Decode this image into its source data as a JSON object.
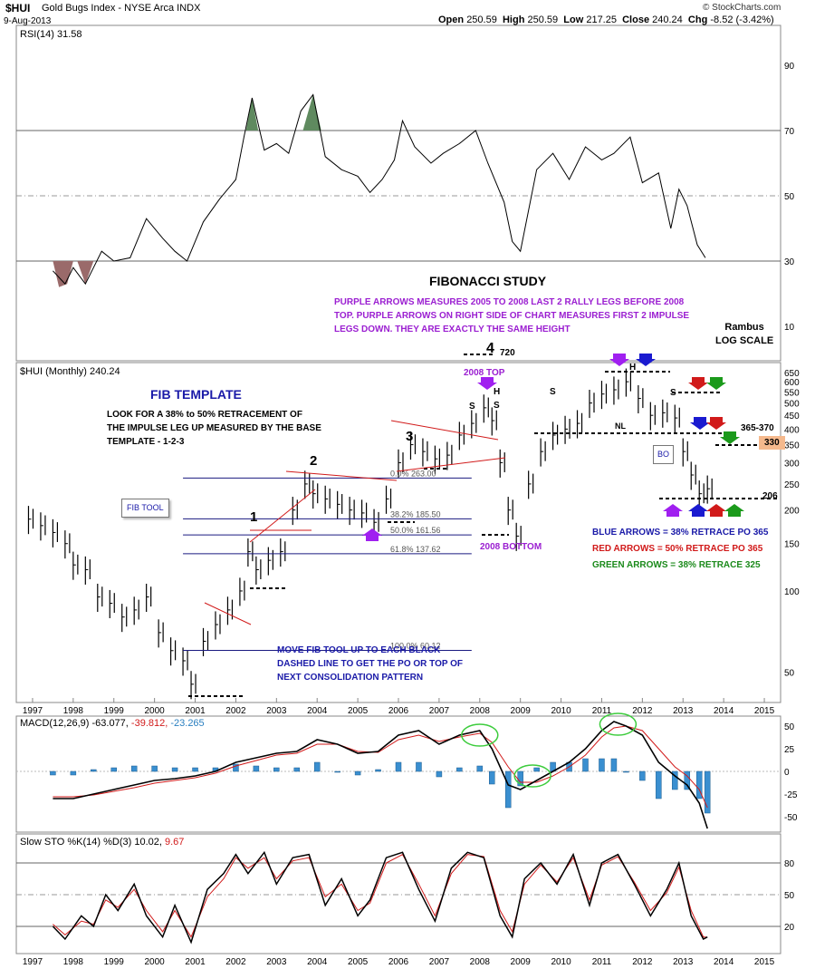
{
  "header": {
    "symbol": "$HUI",
    "name": "Gold Bugs Index - NYSE Arca INDX",
    "date": "9-Aug-2013",
    "open_label": "Open",
    "open": "250.59",
    "high_label": "High",
    "high": "250.59",
    "low_label": "Low",
    "low": "217.25",
    "close_label": "Close",
    "close": "240.24",
    "chg_label": "Chg",
    "chg": "-8.52 (-3.42%)",
    "credit": "© StockCharts.com"
  },
  "annotations": {
    "title": "FIBONACCI STUDY",
    "purple_note": "PURPLE ARROWS MEASURES 2005 TO 2008 LAST 2 RALLY LEGS BEFORE 2008\nTOP. PURPLE ARROWS ON RIGHT SIDE OF CHART MEASURES FIRST 2 IMPULSE\nLEGS DOWN. THEY ARE EXACTLY THE SAME HEIGHT",
    "rambus": "Rambus\nLOG SCALE",
    "fib_template_title": "FIB TEMPLATE",
    "fib_template_text": "LOOK FOR A 38% to 50% RETRACEMENT OF\nTHE IMPULSE LEG UP MEASURED BY THE BASE\nTEMPLATE - 1-2-3",
    "fib_tool": "FIB TOOL",
    "move_note": "MOVE FIB TOOL UP TO EACH BLACK\nDASHED LINE TO GET THE PO OR TOP OF\nNEXT CONSOLIDATION PATTERN",
    "blue_arrows": "BLUE ARROWS = 38% RETRACE PO 365",
    "red_arrows": "RED ARROWS = 50% RETRACE PO 365",
    "green_arrows": "GREEN ARROWS = 38% RETRACE 325",
    "top_2008": "2008 TOP",
    "bottom_2008": "2008 BOTTOM",
    "wave_1": "1",
    "wave_2": "2",
    "wave_3": "3",
    "wave_4": "4",
    "wave_4_value": "720",
    "s": "S",
    "h": "H",
    "nl": "NL",
    "bo": "BO",
    "po_365_370": "365-370",
    "po_330": "330",
    "po_206": "206"
  },
  "chart_data": [
    {
      "type": "line",
      "panel": "RSI",
      "title": "RSI(14) 31.58",
      "y_ticks": [
        10,
        30,
        50,
        70,
        90
      ],
      "reference_lines": [
        30,
        50,
        70
      ],
      "x": [
        1997.5,
        1997.8,
        1998.0,
        1998.3,
        1998.7,
        1999.0,
        1999.4,
        1999.8,
        2000.2,
        2000.5,
        2000.8,
        2001.2,
        2001.6,
        2002.0,
        2002.2,
        2002.4,
        2002.7,
        2003.0,
        2003.3,
        2003.6,
        2003.9,
        2004.2,
        2004.6,
        2005.0,
        2005.3,
        2005.6,
        2005.9,
        2006.1,
        2006.4,
        2006.8,
        2007.1,
        2007.5,
        2007.9,
        2008.2,
        2008.6,
        2008.8,
        2009.0,
        2009.4,
        2009.8,
        2010.2,
        2010.6,
        2011.0,
        2011.3,
        2011.7,
        2012.0,
        2012.4,
        2012.7,
        2012.9,
        2013.1,
        2013.35,
        2013.55
      ],
      "values": [
        27,
        23,
        28,
        23,
        33,
        30,
        31,
        43,
        37,
        33,
        30,
        42,
        49,
        55,
        68,
        80,
        64,
        66,
        63,
        76,
        81,
        62,
        58,
        56,
        51,
        55,
        61,
        73,
        65,
        60,
        63,
        66,
        70,
        60,
        48,
        36,
        33,
        58,
        63,
        55,
        65,
        61,
        63,
        68,
        54,
        57,
        40,
        52,
        47,
        35,
        31
      ],
      "shaded_oversold": "brown below 30",
      "shaded_overbought": "green above 70"
    },
    {
      "type": "bar",
      "panel": "Price",
      "title": "$HUI (Monthly) 240.24",
      "scale": "log",
      "y_ticks": [
        50,
        100,
        150,
        200,
        250,
        300,
        350,
        400,
        450,
        500,
        550,
        600,
        650
      ],
      "x_ticks": [
        "1997",
        "1998",
        "1999",
        "2000",
        "2001",
        "2002",
        "2003",
        "2004",
        "2005",
        "2006",
        "2007",
        "2008",
        "2009",
        "2010",
        "2011",
        "2012",
        "2013",
        "2014",
        "2015"
      ],
      "x": [
        1996.9,
        1997.2,
        1997.5,
        1997.8,
        1998.0,
        1998.3,
        1998.6,
        1998.9,
        1999.2,
        1999.5,
        1999.8,
        2000.1,
        2000.4,
        2000.7,
        2000.9,
        2001.2,
        2001.5,
        2001.8,
        2002.1,
        2002.3,
        2002.5,
        2002.8,
        2003.1,
        2003.4,
        2003.7,
        2003.9,
        2004.2,
        2004.5,
        2004.8,
        2005.1,
        2005.4,
        2005.7,
        2006.0,
        2006.3,
        2006.6,
        2006.9,
        2007.2,
        2007.5,
        2007.8,
        2008.1,
        2008.3,
        2008.5,
        2008.7,
        2008.9,
        2009.2,
        2009.5,
        2009.8,
        2010.1,
        2010.4,
        2010.7,
        2011.0,
        2011.3,
        2011.6,
        2011.9,
        2012.2,
        2012.5,
        2012.8,
        2013.0,
        2013.2,
        2013.4,
        2013.6
      ],
      "close": [
        185,
        175,
        165,
        150,
        125,
        120,
        95,
        90,
        80,
        85,
        95,
        70,
        60,
        55,
        45,
        65,
        75,
        85,
        100,
        140,
        120,
        130,
        140,
        200,
        250,
        230,
        220,
        210,
        200,
        195,
        180,
        220,
        300,
        350,
        330,
        310,
        320,
        380,
        420,
        480,
        430,
        300,
        200,
        160,
        250,
        330,
        380,
        400,
        420,
        500,
        540,
        560,
        600,
        520,
        450,
        460,
        440,
        330,
        270,
        230,
        240
      ],
      "fib_retracement": [
        {
          "label": "0.0% 263.00",
          "value": 263.0
        },
        {
          "label": "38.2% 185.50",
          "value": 185.5
        },
        {
          "label": "50.0% 161.56",
          "value": 161.56
        },
        {
          "label": "61.8% 137.62",
          "value": 137.62
        },
        {
          "label": "100.0% 60.12",
          "value": 60.12
        }
      ]
    },
    {
      "type": "line",
      "panel": "MACD",
      "title": "MACD(12,26,9) -63.077, -39.812, -23.265",
      "title_macd": "MACD(12,26,9)",
      "title_sig": "-63.077,",
      "title_line": "-39.812,",
      "title_hist": "-23.265",
      "y_ticks": [
        -50,
        -25,
        0,
        25,
        50
      ],
      "x": [
        1997.5,
        1998.0,
        1998.5,
        1999.0,
        1999.5,
        2000.0,
        2000.5,
        2001.0,
        2001.5,
        2002.0,
        2002.5,
        2003.0,
        2003.5,
        2004.0,
        2004.5,
        2005.0,
        2005.5,
        2006.0,
        2006.5,
        2007.0,
        2007.5,
        2008.0,
        2008.3,
        2008.7,
        2009.0,
        2009.4,
        2009.8,
        2010.2,
        2010.6,
        2011.0,
        2011.3,
        2011.6,
        2012.0,
        2012.4,
        2012.8,
        2013.1,
        2013.4,
        2013.6
      ],
      "macd": [
        -30,
        -30,
        -25,
        -20,
        -15,
        -10,
        -8,
        -5,
        0,
        10,
        15,
        20,
        22,
        35,
        30,
        20,
        22,
        40,
        45,
        30,
        40,
        45,
        25,
        -15,
        -20,
        -10,
        0,
        10,
        25,
        45,
        55,
        50,
        40,
        10,
        -5,
        -15,
        -35,
        -63
      ],
      "signal": [
        -28,
        -28,
        -26,
        -22,
        -18,
        -13,
        -10,
        -7,
        -2,
        6,
        12,
        18,
        20,
        30,
        30,
        22,
        21,
        35,
        40,
        33,
        38,
        42,
        32,
        5,
        -12,
        -12,
        -5,
        5,
        18,
        38,
        48,
        50,
        45,
        25,
        5,
        -5,
        -20,
        -40
      ]
    },
    {
      "type": "line",
      "panel": "Slow STO",
      "title": "Slow STO %K(14) %D(3) 10.02, 9.67",
      "title_sto": "Slow STO %K(14) %D(3)",
      "title_k": "10.02,",
      "title_d": "9.67",
      "y_ticks": [
        20,
        50,
        80
      ],
      "reference_lines": [
        20,
        50,
        80
      ],
      "x": [
        1997.5,
        1997.8,
        1998.2,
        1998.5,
        1998.8,
        1999.1,
        1999.5,
        1999.8,
        2000.2,
        2000.5,
        2000.9,
        2001.3,
        2001.7,
        2002.0,
        2002.3,
        2002.7,
        2003.0,
        2003.4,
        2003.8,
        2004.2,
        2004.6,
        2005.0,
        2005.3,
        2005.7,
        2006.1,
        2006.5,
        2006.9,
        2007.3,
        2007.7,
        2008.1,
        2008.5,
        2008.8,
        2009.1,
        2009.5,
        2009.9,
        2010.3,
        2010.7,
        2011.0,
        2011.4,
        2011.8,
        2012.2,
        2012.6,
        2012.9,
        2013.2,
        2013.5,
        2013.6
      ],
      "k": [
        20,
        8,
        30,
        20,
        50,
        35,
        60,
        30,
        10,
        40,
        5,
        55,
        70,
        88,
        70,
        90,
        60,
        85,
        88,
        40,
        65,
        30,
        45,
        85,
        90,
        55,
        25,
        75,
        90,
        85,
        30,
        10,
        65,
        80,
        60,
        88,
        40,
        80,
        88,
        60,
        30,
        55,
        80,
        30,
        8,
        10
      ],
      "d": [
        22,
        12,
        25,
        22,
        45,
        38,
        55,
        35,
        15,
        35,
        10,
        48,
        65,
        85,
        75,
        85,
        65,
        82,
        85,
        48,
        60,
        35,
        42,
        80,
        88,
        60,
        30,
        70,
        88,
        86,
        35,
        15,
        60,
        78,
        62,
        85,
        45,
        78,
        86,
        62,
        35,
        52,
        76,
        35,
        10,
        9.67
      ]
    }
  ]
}
